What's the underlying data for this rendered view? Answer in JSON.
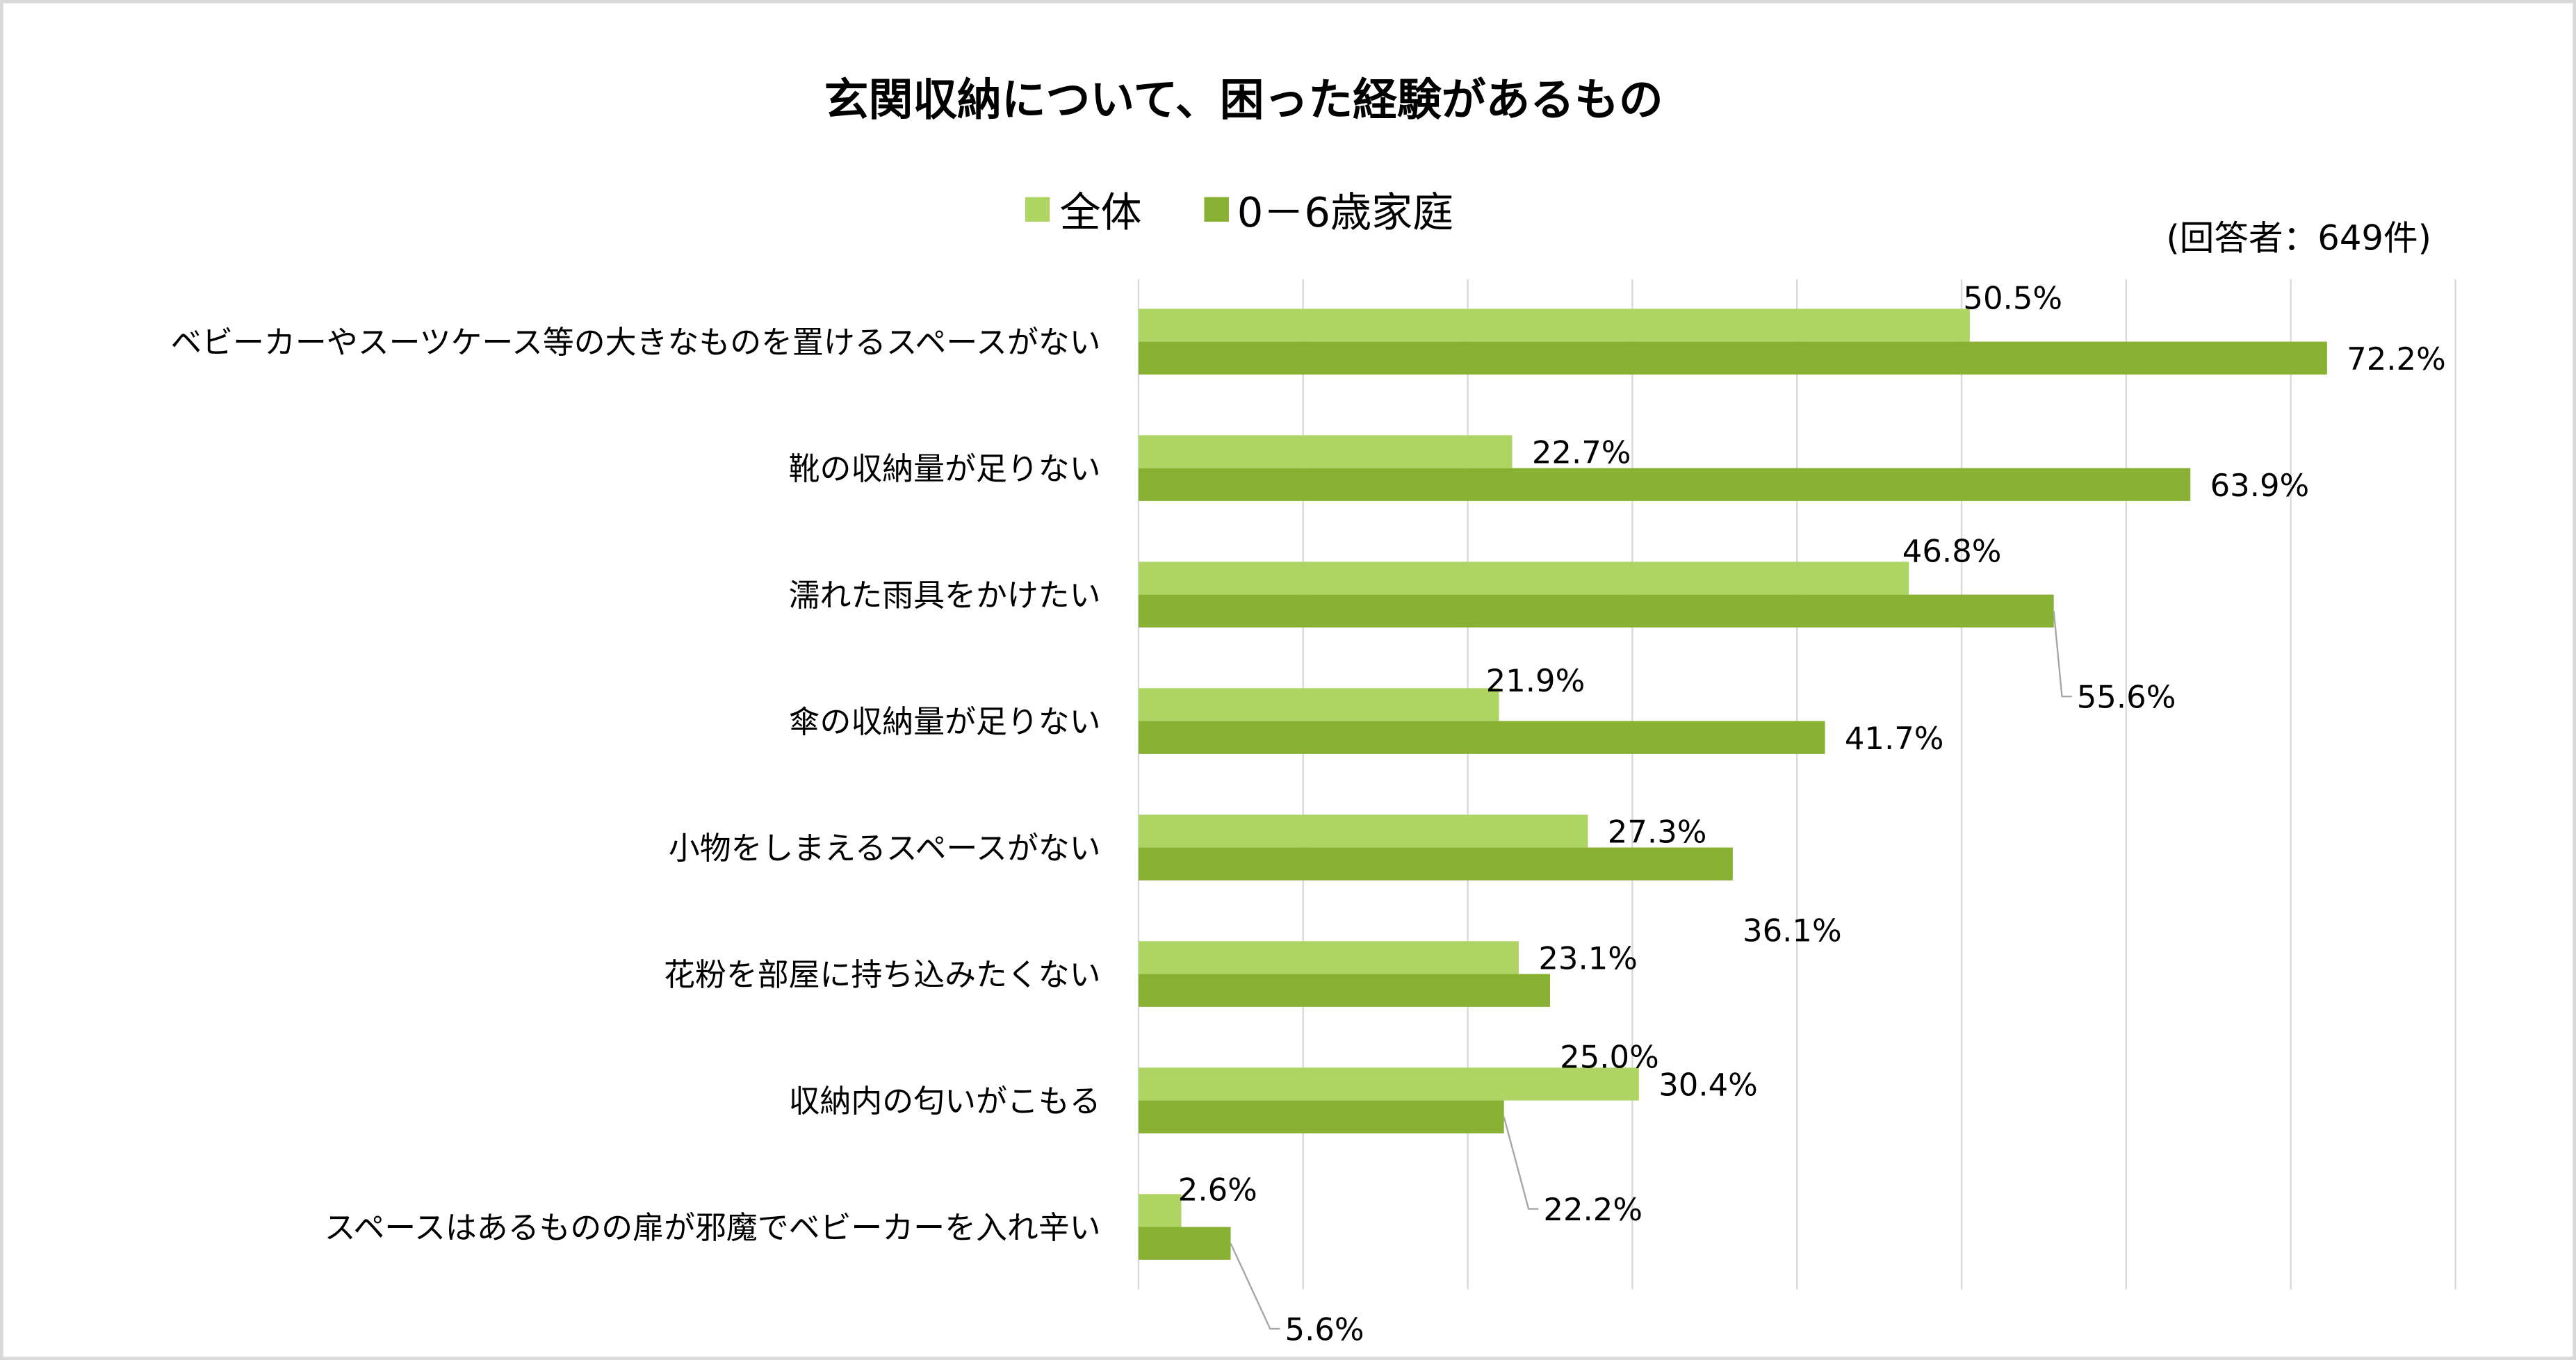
{
  "chart_data": {
    "type": "bar",
    "orientation": "horizontal",
    "title": "玄関収納について、困った経験があるもの",
    "note": "(回答者：649件)",
    "legend_position": "top",
    "grid": true,
    "xlim": [
      0,
      80
    ],
    "categories": [
      "ベビーカーやスーツケース等の大きなものを置けるスペースがない",
      "靴の収納量が足りない",
      "濡れた雨具をかけたい",
      "傘の収納量が足りない",
      "小物をしまえるスペースがない",
      "花粉を部屋に持ち込みたくない",
      "収納内の匂いがこもる",
      "スペースはあるものの扉が邪魔でベビーカーを入れ辛い"
    ],
    "series": [
      {
        "name": "全体",
        "color": "#AED563",
        "values": [
          50.5,
          22.7,
          46.8,
          21.9,
          27.3,
          23.1,
          30.4,
          2.6
        ],
        "labels": [
          "50.5%",
          "22.7%",
          "46.8%",
          "21.9%",
          "27.3%",
          "23.1%",
          "30.4%",
          "2.6%"
        ]
      },
      {
        "name": "0－6歳家庭",
        "color": "#88B033",
        "values": [
          72.2,
          63.9,
          55.6,
          41.7,
          36.1,
          25.0,
          22.2,
          5.6
        ],
        "labels": [
          "72.2%",
          "63.9%",
          "55.6%",
          "41.7%",
          "36.1%",
          "25.0%",
          "22.2%",
          "5.6%"
        ]
      }
    ]
  }
}
